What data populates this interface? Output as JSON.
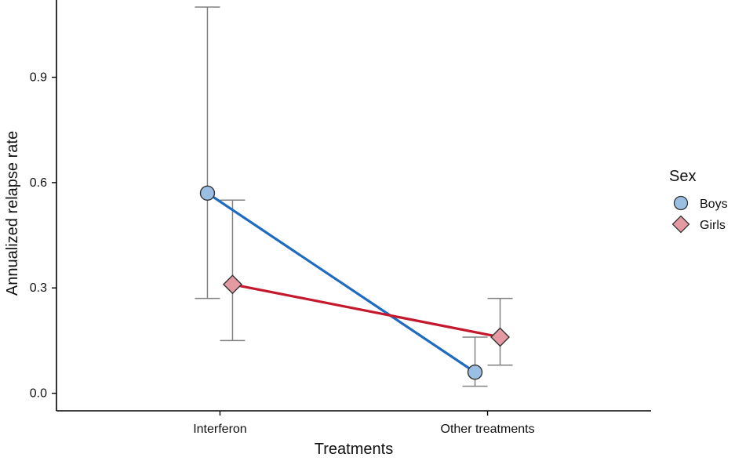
{
  "chart_data": {
    "type": "line",
    "xlabel": "Treatments",
    "ylabel": "Annualized relapse rate",
    "categories": [
      "Interferon",
      "Other treatments"
    ],
    "yticks": [
      0.0,
      0.3,
      0.6,
      0.9
    ],
    "ytick_labels": [
      "0.0",
      "0.3",
      "0.6",
      "0.9"
    ],
    "ylim": [
      -0.05,
      1.12
    ],
    "grid": false,
    "legend": {
      "title": "Sex",
      "position": "right"
    },
    "series": [
      {
        "name": "Boys",
        "color": "#1f6bbf",
        "marker": "circle",
        "marker_fill": "#9bbfe3",
        "values": [
          0.57,
          0.06
        ],
        "lower": [
          0.27,
          0.02
        ],
        "upper": [
          1.1,
          0.16
        ]
      },
      {
        "name": "Girls",
        "color": "#c4182d",
        "marker": "diamond",
        "marker_fill": "#e59aa3",
        "values": [
          0.31,
          0.16
        ],
        "lower": [
          0.15,
          0.08
        ],
        "upper": [
          0.55,
          0.27
        ]
      }
    ]
  }
}
